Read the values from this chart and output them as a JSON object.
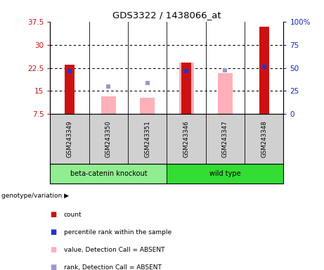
{
  "title": "GDS3322 / 1438066_at",
  "samples": [
    "GSM243349",
    "GSM243350",
    "GSM243351",
    "GSM243346",
    "GSM243347",
    "GSM243348"
  ],
  "groups": [
    "beta-catenin knockout",
    "beta-catenin knockout",
    "beta-catenin knockout",
    "wild type",
    "wild type",
    "wild type"
  ],
  "group_labels": [
    "beta-catenin knockout",
    "wild type"
  ],
  "group_colors_bg": [
    "#90EE90",
    "#33DD33"
  ],
  "ylim_left": [
    7.5,
    37.5
  ],
  "yticks_left": [
    7.5,
    15.0,
    22.5,
    30.0,
    37.5
  ],
  "ytick_left_labels": [
    "7.5",
    "15",
    "22.5",
    "30",
    "37.5"
  ],
  "ylim_right": [
    0,
    100
  ],
  "yticks_right": [
    0,
    25,
    50,
    75,
    100
  ],
  "ytick_right_labels": [
    "0",
    "25",
    "50",
    "75",
    "100%"
  ],
  "red_bars": [
    23.5,
    null,
    null,
    24.2,
    null,
    35.8
  ],
  "pink_bars": [
    null,
    13.2,
    12.8,
    24.2,
    20.8,
    null
  ],
  "blue_squares_left": [
    21.5,
    null,
    null,
    21.5,
    null,
    22.8
  ],
  "lavender_squares_left": [
    null,
    16.5,
    17.5,
    null,
    21.8,
    null
  ],
  "red_bar_color": "#cc1111",
  "pink_bar_color": "#ffb0b8",
  "blue_sq_color": "#2233cc",
  "lavender_sq_color": "#9999cc",
  "red_bar_width": 0.25,
  "pink_bar_width": 0.38,
  "sq_size": 4,
  "ylabel_left_color": "#cc1111",
  "ylabel_right_color": "#1122cc",
  "plot_bg": "#ffffff",
  "sample_cell_bg": "#d0d0d0",
  "legend_items": [
    {
      "label": "count",
      "color": "#cc1111"
    },
    {
      "label": "percentile rank within the sample",
      "color": "#2233cc"
    },
    {
      "label": "value, Detection Call = ABSENT",
      "color": "#ffb0b8"
    },
    {
      "label": "rank, Detection Call = ABSENT",
      "color": "#9999cc"
    }
  ]
}
